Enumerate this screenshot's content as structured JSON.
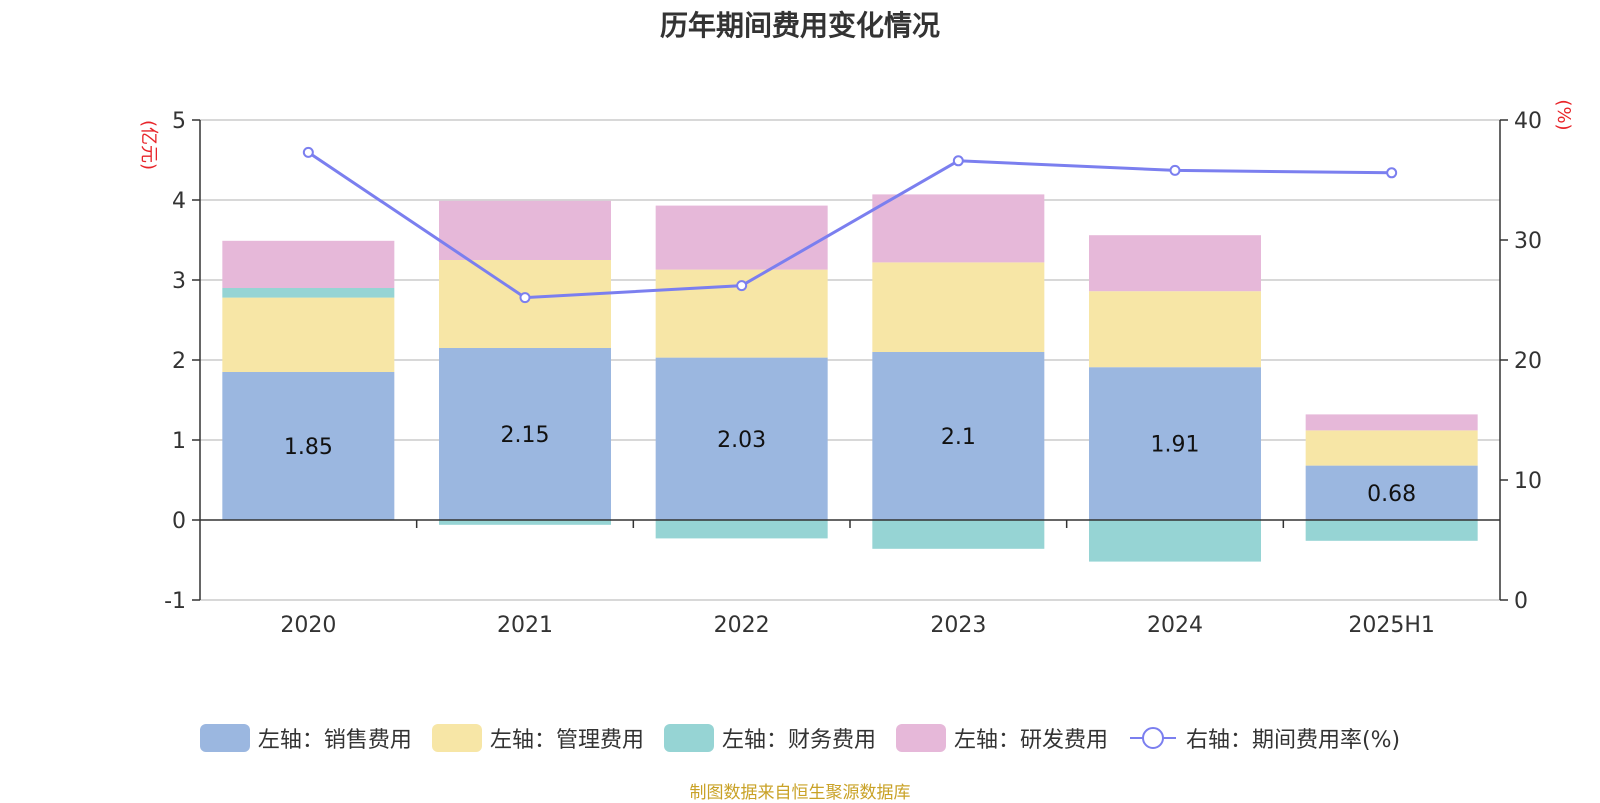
{
  "chart_data": {
    "type": "bar",
    "title": "历年期间费用变化情况",
    "categories": [
      "2020",
      "2021",
      "2022",
      "2023",
      "2024",
      "2025H1"
    ],
    "left_axis": {
      "unit_label": "(亿元)",
      "ylim": [
        -1,
        5
      ],
      "ticks": [
        "5",
        "4",
        "3",
        "2",
        "1",
        "0",
        "-1"
      ]
    },
    "right_axis": {
      "unit_label": "(%)",
      "ylim": [
        0,
        40
      ],
      "ticks": [
        "40",
        "30",
        "20",
        "10",
        "0"
      ]
    },
    "series": [
      {
        "name": "左轴：销售费用",
        "axis": "left",
        "type": "bar",
        "color": "#9bb7e0",
        "values": [
          1.85,
          2.15,
          2.03,
          2.1,
          1.91,
          0.68
        ],
        "labels": [
          "1.85",
          "2.15",
          "2.03",
          "2.1",
          "1.91",
          "0.68"
        ]
      },
      {
        "name": "左轴：管理费用",
        "axis": "left",
        "type": "bar",
        "color": "#f7e6a6",
        "values": [
          0.93,
          1.1,
          1.1,
          1.12,
          0.95,
          0.44
        ]
      },
      {
        "name": "左轴：财务费用",
        "axis": "left",
        "type": "bar",
        "color": "#96d4d4",
        "values": [
          0.12,
          -0.06,
          -0.23,
          -0.36,
          -0.52,
          -0.26
        ]
      },
      {
        "name": "左轴：研发费用",
        "axis": "left",
        "type": "bar",
        "color": "#e6b8d9",
        "values": [
          0.59,
          0.74,
          0.8,
          0.85,
          0.7,
          0.2
        ]
      },
      {
        "name": "右轴：期间费用率(%)",
        "axis": "right",
        "type": "line",
        "color": "#7b7fef",
        "values": [
          37.3,
          25.2,
          26.2,
          36.6,
          35.8,
          35.6
        ]
      }
    ]
  },
  "legend": [
    {
      "label": "左轴：销售费用",
      "color": "#9bb7e0",
      "kind": "bar"
    },
    {
      "label": "左轴：管理费用",
      "color": "#f7e6a6",
      "kind": "bar"
    },
    {
      "label": "左轴：财务费用",
      "color": "#96d4d4",
      "kind": "bar"
    },
    {
      "label": "左轴：研发费用",
      "color": "#e6b8d9",
      "kind": "bar"
    },
    {
      "label": "右轴：期间费用率(%)",
      "color": "#7b7fef",
      "kind": "line"
    }
  ],
  "source_note": "制图数据来自恒生聚源数据库",
  "colors": {
    "title": "#333333",
    "axis_unit": "#e8252a",
    "source": "#c9a227",
    "grid": "#cccccc"
  }
}
